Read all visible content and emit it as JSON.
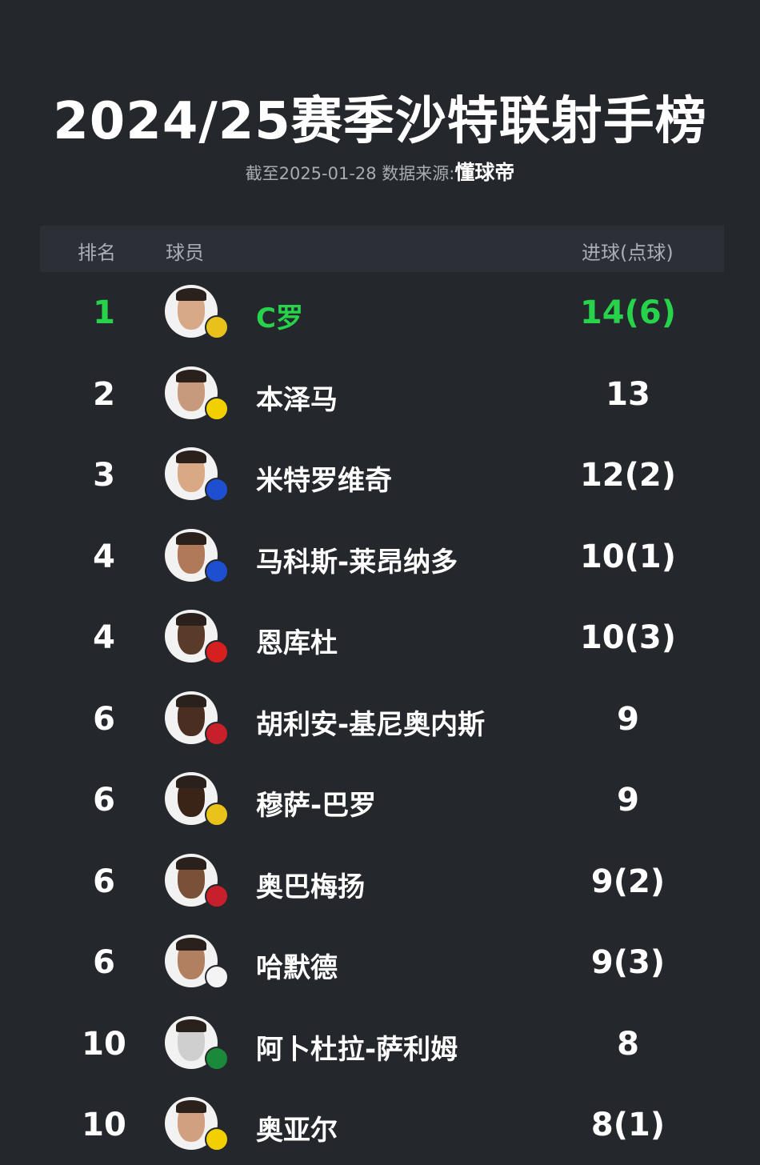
{
  "title": "2024/25赛季沙特联射手榜",
  "subtitle": {
    "prefix": "截至2025-01-28 数据来源:",
    "source": "懂球帝"
  },
  "header": {
    "rank": "排名",
    "player": "球员",
    "goals": "进球(点球)"
  },
  "colors": {
    "highlight": "#27d34b",
    "background": "#24272c"
  },
  "rows": [
    {
      "rank": "1",
      "name": "C罗",
      "goals": "14(6)",
      "badge": "#e8c21a",
      "highlight": true
    },
    {
      "rank": "2",
      "name": "本泽马",
      "goals": "13",
      "badge": "#f2d000"
    },
    {
      "rank": "3",
      "name": "米特罗维奇",
      "goals": "12(2)",
      "badge": "#1f4fd1"
    },
    {
      "rank": "4",
      "name": "马科斯-莱昂纳多",
      "goals": "10(1)",
      "badge": "#1f4fd1"
    },
    {
      "rank": "4",
      "name": "恩库杜",
      "goals": "10(3)",
      "badge": "#d62020"
    },
    {
      "rank": "6",
      "name": "胡利安-基尼奥内斯",
      "goals": "9",
      "badge": "#c8202a"
    },
    {
      "rank": "6",
      "name": "穆萨-巴罗",
      "goals": "9",
      "badge": "#e9c21a"
    },
    {
      "rank": "6",
      "name": "奥巴梅扬",
      "goals": "9(2)",
      "badge": "#c8202a"
    },
    {
      "rank": "6",
      "name": "哈默德",
      "goals": "9(3)",
      "badge": "#f4f4f4"
    },
    {
      "rank": "10",
      "name": "阿卜杜拉-萨利姆",
      "goals": "8",
      "badge": "#1a8a3a"
    },
    {
      "rank": "10",
      "name": "奥亚尔",
      "goals": "8(1)",
      "badge": "#f2d000"
    }
  ]
}
